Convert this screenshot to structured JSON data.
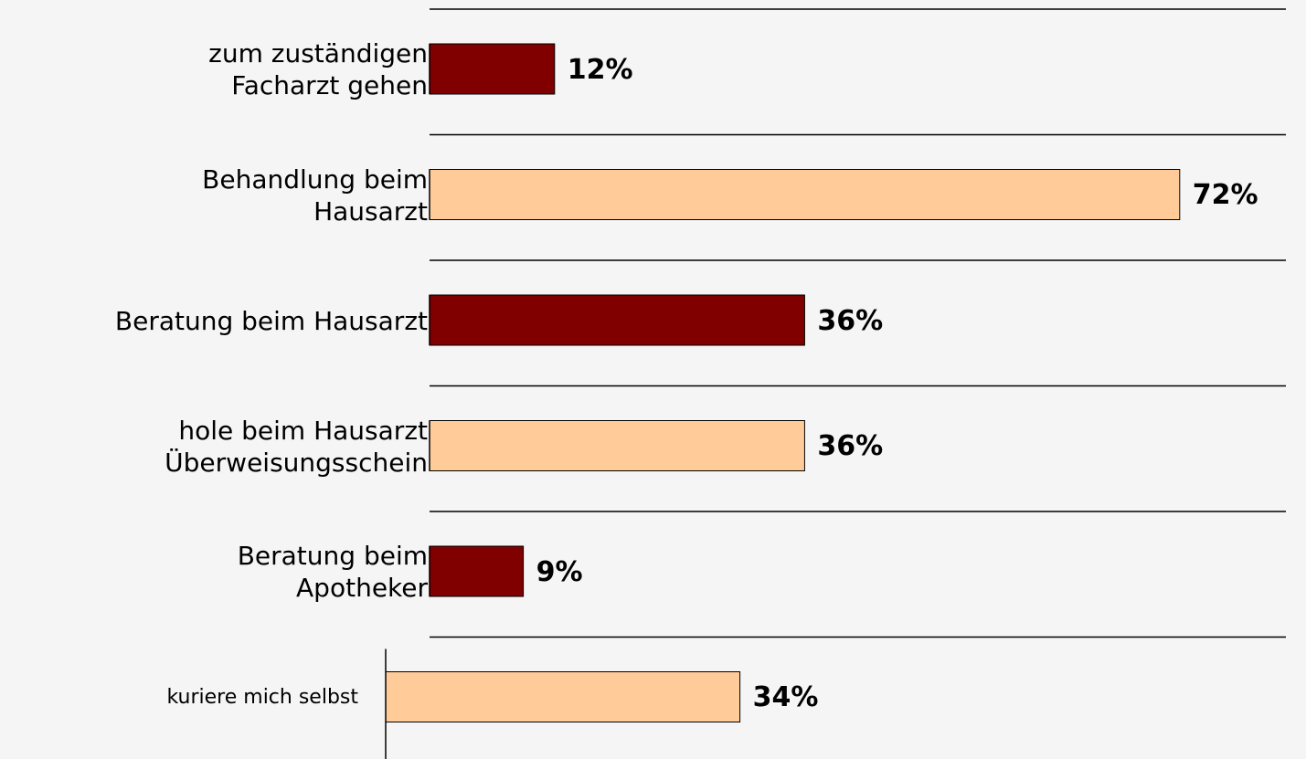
{
  "chart_data": {
    "type": "bar",
    "orientation": "horizontal",
    "categories": [
      "zum zuständigen\nFacharzt gehen",
      "Behandlung beim\nHausarzt",
      "Beratung beim Hausarzt",
      "hole beim Hausarzt\nÜberweisungsschein",
      "Beratung beim\nApotheker",
      "kuriere mich selbst"
    ],
    "values": [
      12,
      72,
      36,
      36,
      9,
      34
    ],
    "value_labels": [
      "12%",
      "72%",
      "36%",
      "36%",
      "9%",
      "34%"
    ],
    "colors": [
      "#800000",
      "#ffcc99",
      "#800000",
      "#ffcc99",
      "#800000",
      "#ffcc99"
    ]
  }
}
